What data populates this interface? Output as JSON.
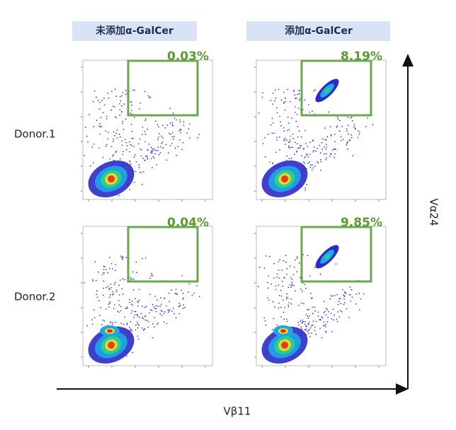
{
  "columns": [
    "未添加α-GalCer",
    "添加α-GalCer"
  ],
  "rows": [
    "Donor.1",
    "Donor.2"
  ],
  "panels": [
    [
      "0.03%",
      "8.19%"
    ],
    [
      "0.04%",
      "9.85%"
    ]
  ],
  "x_axis": "Vβ11",
  "y_axis": "Vα24"
}
